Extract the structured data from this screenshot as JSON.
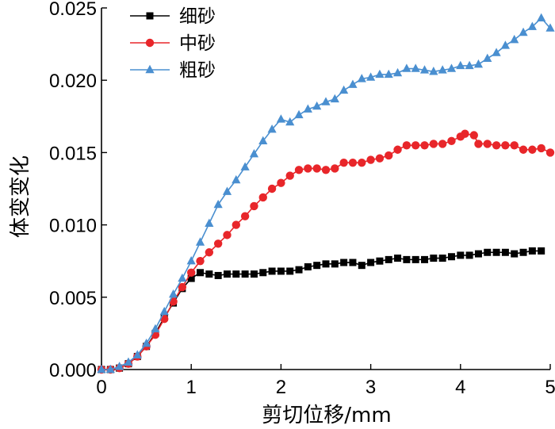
{
  "chart_data": {
    "type": "line",
    "title": "",
    "xlabel": "剪切位移/mm",
    "ylabel": "体变变化",
    "xlim": [
      0,
      5
    ],
    "ylim": [
      0,
      0.025
    ],
    "xticks": [
      "0",
      "1",
      "2",
      "3",
      "4",
      "5"
    ],
    "yticks": [
      "0.000",
      "0.005",
      "0.010",
      "0.015",
      "0.020",
      "0.025"
    ],
    "legend_position": "top-left",
    "grid": false,
    "series": [
      {
        "name": "细砂",
        "color": "#000000",
        "marker": "square",
        "x": [
          0.0,
          0.1,
          0.2,
          0.3,
          0.4,
          0.5,
          0.6,
          0.7,
          0.8,
          0.9,
          1.0,
          1.1,
          1.2,
          1.3,
          1.4,
          1.5,
          1.6,
          1.7,
          1.8,
          1.9,
          2.0,
          2.1,
          2.2,
          2.3,
          2.4,
          2.5,
          2.6,
          2.7,
          2.8,
          2.9,
          3.0,
          3.1,
          3.2,
          3.3,
          3.4,
          3.5,
          3.6,
          3.7,
          3.8,
          3.9,
          4.0,
          4.1,
          4.2,
          4.3,
          4.4,
          4.5,
          4.6,
          4.7,
          4.8,
          4.9
        ],
        "y": [
          0.0,
          0.0,
          0.0001,
          0.0004,
          0.0009,
          0.0016,
          0.0025,
          0.0036,
          0.0046,
          0.0056,
          0.0063,
          0.0067,
          0.0066,
          0.0065,
          0.0066,
          0.0066,
          0.0066,
          0.0066,
          0.0067,
          0.0068,
          0.0068,
          0.0068,
          0.0069,
          0.0071,
          0.0072,
          0.0073,
          0.0073,
          0.0074,
          0.0074,
          0.0072,
          0.0074,
          0.0075,
          0.0076,
          0.0077,
          0.0076,
          0.0076,
          0.0076,
          0.0077,
          0.0077,
          0.0078,
          0.0079,
          0.0079,
          0.008,
          0.0081,
          0.0081,
          0.0081,
          0.008,
          0.0081,
          0.0082,
          0.0082
        ]
      },
      {
        "name": "中砂",
        "color": "#e8262a",
        "marker": "circle",
        "x": [
          0.0,
          0.1,
          0.2,
          0.3,
          0.4,
          0.5,
          0.6,
          0.7,
          0.8,
          0.9,
          1.0,
          1.1,
          1.2,
          1.3,
          1.4,
          1.5,
          1.6,
          1.7,
          1.8,
          1.9,
          2.0,
          2.1,
          2.2,
          2.3,
          2.4,
          2.5,
          2.6,
          2.7,
          2.8,
          2.9,
          3.0,
          3.1,
          3.2,
          3.3,
          3.4,
          3.5,
          3.6,
          3.7,
          3.8,
          3.9,
          4.0,
          4.05,
          4.15,
          4.2,
          4.3,
          4.4,
          4.5,
          4.6,
          4.7,
          4.8,
          4.9,
          5.0
        ],
        "y": [
          0.0,
          0.0,
          0.0001,
          0.0004,
          0.0009,
          0.0016,
          0.0024,
          0.0035,
          0.0047,
          0.0057,
          0.0067,
          0.0075,
          0.0081,
          0.0087,
          0.0093,
          0.01,
          0.0106,
          0.0113,
          0.0119,
          0.0125,
          0.0129,
          0.0134,
          0.0138,
          0.0139,
          0.0139,
          0.0138,
          0.0139,
          0.0143,
          0.0143,
          0.0143,
          0.0145,
          0.0146,
          0.0148,
          0.0152,
          0.0155,
          0.0155,
          0.0155,
          0.0156,
          0.0156,
          0.0158,
          0.0161,
          0.0163,
          0.0162,
          0.0156,
          0.0156,
          0.0155,
          0.0155,
          0.0155,
          0.0152,
          0.0152,
          0.0153,
          0.015
        ]
      },
      {
        "name": "粗砂",
        "color": "#4a8fd0",
        "marker": "triangle",
        "x": [
          0.0,
          0.1,
          0.2,
          0.3,
          0.4,
          0.5,
          0.6,
          0.7,
          0.8,
          0.9,
          1.0,
          1.1,
          1.2,
          1.3,
          1.4,
          1.5,
          1.6,
          1.7,
          1.8,
          1.9,
          2.0,
          2.1,
          2.2,
          2.3,
          2.4,
          2.5,
          2.6,
          2.7,
          2.8,
          2.9,
          3.0,
          3.1,
          3.2,
          3.3,
          3.4,
          3.5,
          3.6,
          3.7,
          3.8,
          3.9,
          4.0,
          4.1,
          4.2,
          4.3,
          4.4,
          4.5,
          4.6,
          4.7,
          4.8,
          4.9,
          5.0
        ],
        "y": [
          0.0,
          0.0,
          0.0002,
          0.0005,
          0.001,
          0.0018,
          0.0028,
          0.004,
          0.0052,
          0.0063,
          0.0075,
          0.0088,
          0.0101,
          0.0114,
          0.0123,
          0.0131,
          0.014,
          0.0149,
          0.0158,
          0.0166,
          0.0173,
          0.0171,
          0.0176,
          0.018,
          0.0182,
          0.0185,
          0.0187,
          0.0193,
          0.0197,
          0.0201,
          0.0202,
          0.0204,
          0.0204,
          0.0205,
          0.0208,
          0.0208,
          0.0207,
          0.0206,
          0.0207,
          0.0208,
          0.021,
          0.021,
          0.0211,
          0.0215,
          0.0219,
          0.0224,
          0.0228,
          0.0233,
          0.0237,
          0.0243,
          0.0236
        ]
      }
    ]
  }
}
